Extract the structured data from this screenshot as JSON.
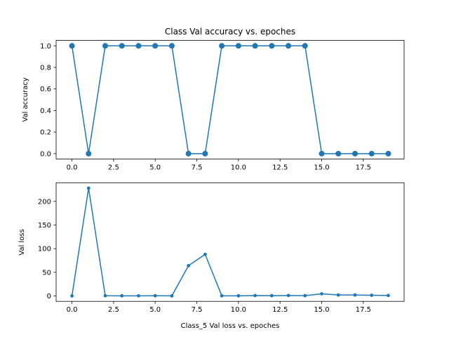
{
  "chart_data": [
    {
      "type": "line",
      "title": "Class Val accuracy vs. epoches",
      "xlabel": "",
      "ylabel": "Val accuracy",
      "marker": "circle-large",
      "color": "#1f77b4",
      "xlim": [
        -0.95,
        19.95
      ],
      "ylim": [
        -0.05,
        1.05
      ],
      "xticks": [
        0,
        2.5,
        5,
        7.5,
        10,
        12.5,
        15,
        17.5
      ],
      "xtick_labels": [
        "0.0",
        "2.5",
        "5.0",
        "7.5",
        "10.0",
        "12.5",
        "15.0",
        "17.5"
      ],
      "yticks": [
        0,
        0.2,
        0.4,
        0.6,
        0.8,
        1.0
      ],
      "ytick_labels": [
        "0.0",
        "0.2",
        "0.4",
        "0.6",
        "0.8",
        "1.0"
      ],
      "x": [
        0,
        1,
        2,
        3,
        4,
        5,
        6,
        7,
        8,
        9,
        10,
        11,
        12,
        13,
        14,
        15,
        16,
        17,
        18,
        19
      ],
      "values": [
        1,
        0,
        1,
        1,
        1,
        1,
        1,
        0,
        0,
        1,
        1,
        1,
        1,
        1,
        1,
        0,
        0,
        0,
        0,
        0
      ]
    },
    {
      "type": "line",
      "title": "",
      "xlabel": "Class_5 Val loss vs. epoches",
      "ylabel": "Val loss",
      "marker": "circle-small",
      "color": "#1f77b4",
      "xlim": [
        -0.95,
        19.95
      ],
      "ylim": [
        -11.4,
        239.4
      ],
      "xticks": [
        0,
        2.5,
        5,
        7.5,
        10,
        12.5,
        15,
        17.5
      ],
      "xtick_labels": [
        "0.0",
        "2.5",
        "5.0",
        "7.5",
        "10.0",
        "12.5",
        "15.0",
        "17.5"
      ],
      "yticks": [
        0,
        50,
        100,
        150,
        200
      ],
      "ytick_labels": [
        "0",
        "50",
        "100",
        "150",
        "200"
      ],
      "x": [
        0,
        1,
        2,
        3,
        4,
        5,
        6,
        7,
        8,
        9,
        10,
        11,
        12,
        13,
        14,
        15,
        16,
        17,
        18,
        19
      ],
      "values": [
        0,
        228,
        0.5,
        0.3,
        0.3,
        0.4,
        0.2,
        64,
        88,
        0.3,
        0.3,
        0.8,
        0.5,
        1.0,
        0.6,
        4.5,
        2.0,
        2.0,
        1.5,
        1.0
      ]
    }
  ]
}
